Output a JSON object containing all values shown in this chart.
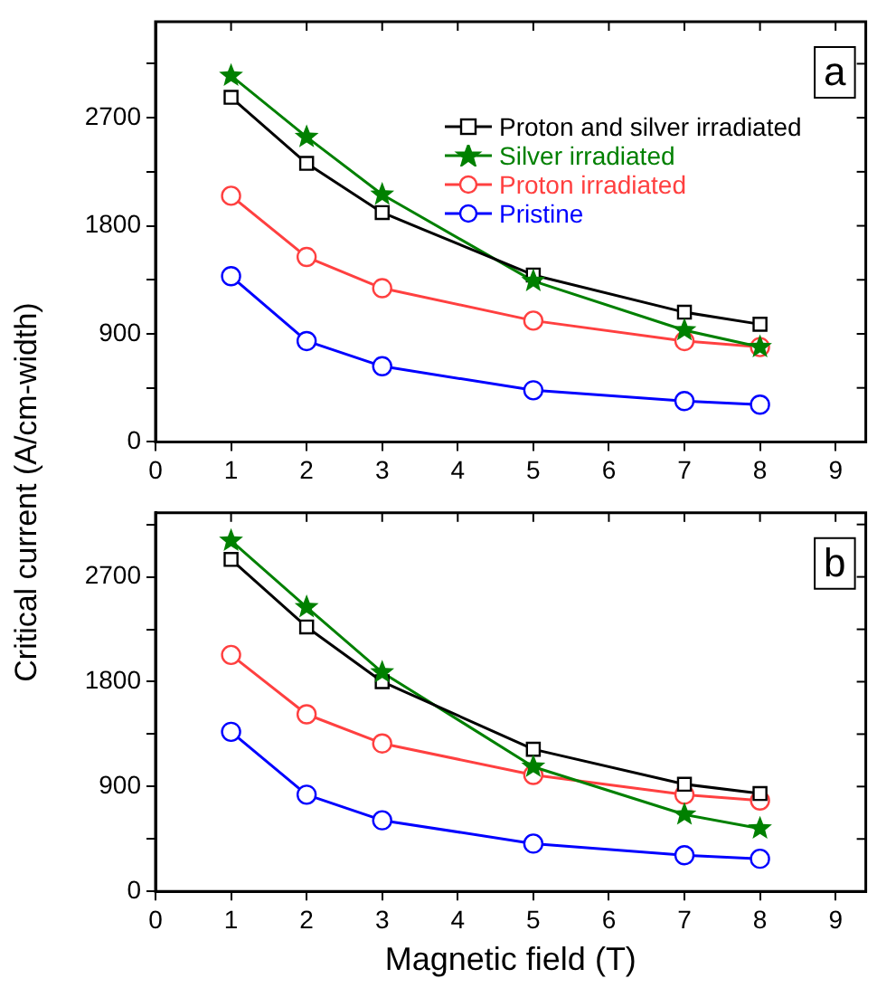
{
  "chart_data": [
    {
      "type": "line",
      "ylabel": "Critical current (A/cm-width)",
      "annotations": [
        "a"
      ],
      "legend": "top right",
      "grid": false,
      "line_style": "solid",
      "x": [
        1,
        2,
        3,
        5,
        7,
        8
      ],
      "xlim": [
        0,
        9.4
      ],
      "xticks": [
        0,
        1,
        2,
        3,
        4,
        5,
        6,
        7,
        8,
        9
      ],
      "ylim": [
        0,
        3500
      ],
      "yticks": [
        0,
        {
          "value": 450,
          "label": null
        },
        900,
        {
          "value": 1350,
          "label": null
        },
        1800,
        {
          "value": 2250,
          "label": null
        },
        2700,
        {
          "value": 3150,
          "label": null
        }
      ],
      "series": [
        {
          "name": "Proton and silver irradiated",
          "color": "#000000",
          "marker": "square",
          "values": [
            2870,
            2320,
            1910,
            1390,
            1080,
            980
          ]
        },
        {
          "name": "Silver irradiated",
          "color": "#008000",
          "marker": "star",
          "values": [
            3050,
            2540,
            2060,
            1340,
            930,
            790
          ]
        },
        {
          "name": "Proton irradiated",
          "color": "#ff4040",
          "marker": "circle",
          "values": [
            2050,
            1540,
            1280,
            1010,
            840,
            790
          ]
        },
        {
          "name": "Pristine",
          "color": "#0000ff",
          "marker": "circle",
          "values": [
            1380,
            840,
            630,
            430,
            340,
            310
          ]
        }
      ]
    },
    {
      "type": "line",
      "xlabel": "Magnetic field (T)",
      "annotations": [
        "b"
      ],
      "grid": false,
      "line_style": "solid",
      "x": [
        1,
        2,
        3,
        5,
        7,
        8
      ],
      "xlim": [
        0,
        9.4
      ],
      "xticks": [
        0,
        1,
        2,
        3,
        4,
        5,
        6,
        7,
        8,
        9
      ],
      "ylim": [
        0,
        3250
      ],
      "yticks": [
        0,
        {
          "value": 450,
          "label": null
        },
        900,
        {
          "value": 1350,
          "label": null
        },
        1800,
        {
          "value": 2250,
          "label": null
        },
        2700,
        {
          "value": 3150,
          "label": null
        }
      ],
      "series": [
        {
          "color": "#000000",
          "marker": "square",
          "values": [
            2850,
            2270,
            1800,
            1220,
            920,
            840
          ]
        },
        {
          "color": "#008000",
          "marker": "star",
          "values": [
            3010,
            2440,
            1880,
            1070,
            660,
            540
          ]
        },
        {
          "color": "#ff4040",
          "marker": "circle",
          "values": [
            2030,
            1520,
            1270,
            1000,
            830,
            780
          ]
        },
        {
          "color": "#0000ff",
          "marker": "circle",
          "values": [
            1370,
            830,
            610,
            410,
            310,
            280
          ]
        }
      ]
    }
  ]
}
